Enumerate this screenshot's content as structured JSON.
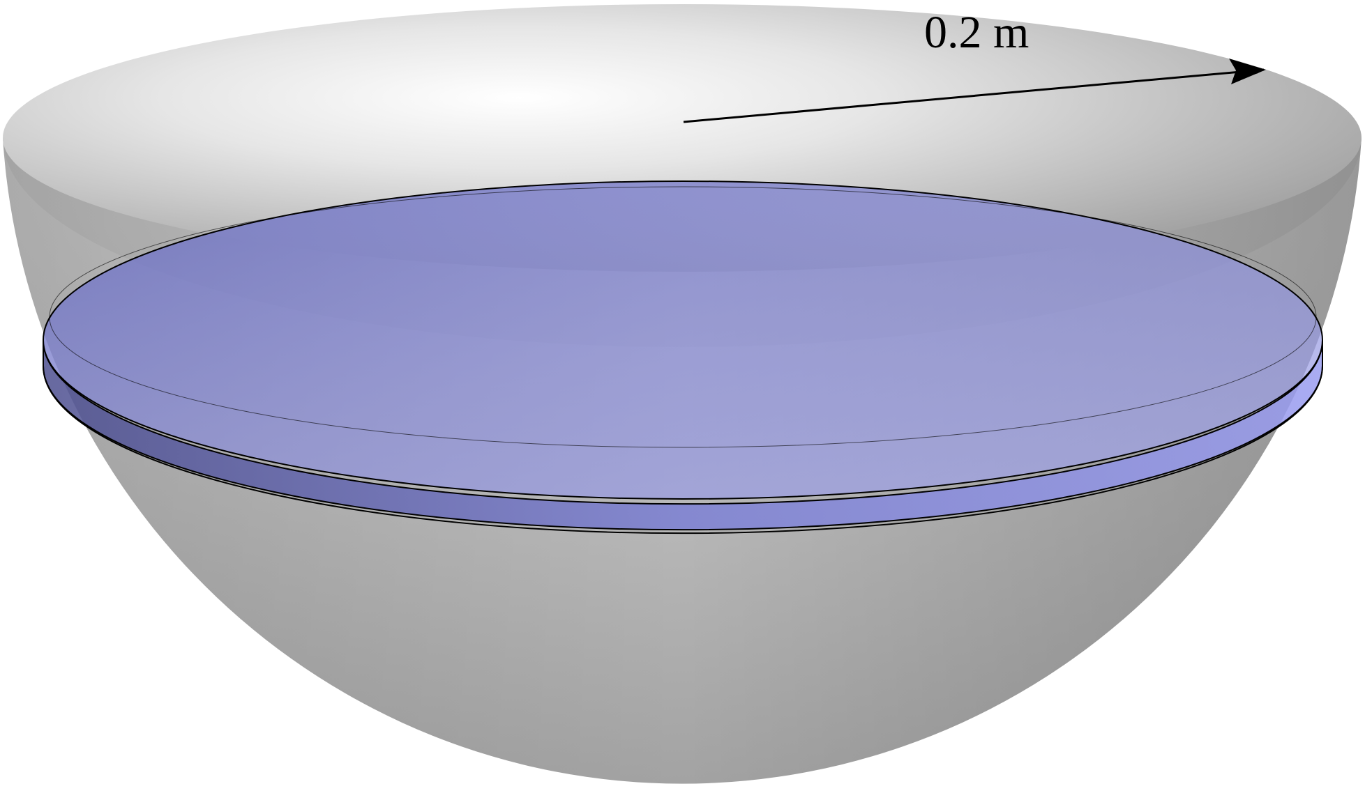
{
  "diagram": {
    "radius_label": "0.2 m"
  },
  "colors": {
    "bowl_light": "#f6f6f6",
    "bowl_mid": "#bdbdbd",
    "bowl_dark": "#8f8f8f",
    "water_slice": "#8f93e6",
    "water_top": "#a6a9f5",
    "outline": "#000000"
  }
}
